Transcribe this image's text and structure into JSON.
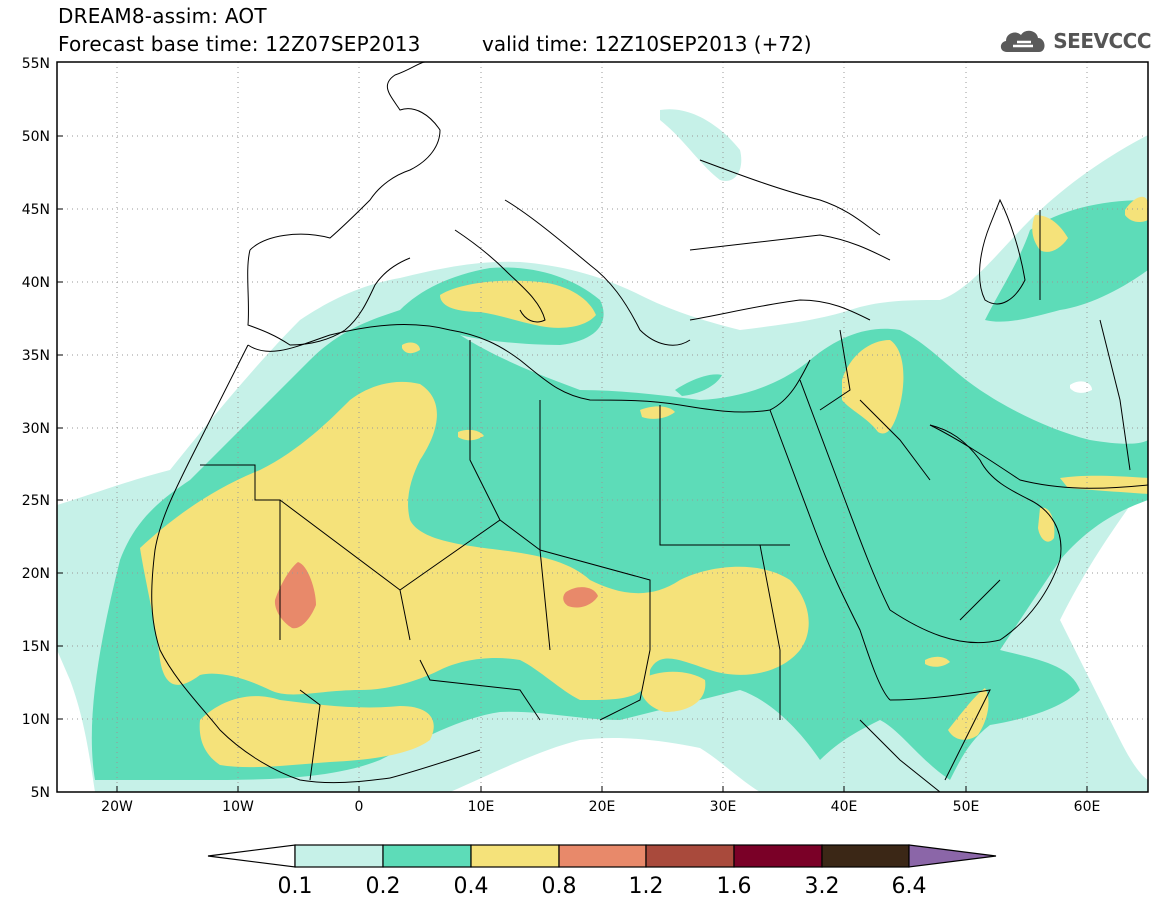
{
  "header": {
    "title_line1": "DREAM8-assim: AOT",
    "title_line2": "Forecast base time: 12Z07SEP2013",
    "title_line2b": "valid time: 12Z10SEP2013 (+72)",
    "logo_text": "SEEVCCC"
  },
  "map": {
    "lon_range": [
      -25,
      65
    ],
    "lat_range": [
      5,
      55
    ],
    "lat_labels": [
      "55N",
      "50N",
      "45N",
      "40N",
      "35N",
      "30N",
      "25N",
      "20N",
      "15N",
      "10N",
      "5N"
    ],
    "lon_labels": [
      "20W",
      "10W",
      "0",
      "10E",
      "20E",
      "30E",
      "40E",
      "50E",
      "60E"
    ],
    "grid": "dotted"
  },
  "colorbar": {
    "labels": [
      "0.1",
      "0.2",
      "0.4",
      "0.8",
      "1.2",
      "1.6",
      "3.2",
      "6.4"
    ],
    "colors": [
      "#ffffff",
      "#c6f1e8",
      "#5ddcb8",
      "#f5e27a",
      "#e8896a",
      "#a94a3c",
      "#7a0027",
      "#3b2716",
      "#8b66a8"
    ]
  },
  "colors": {
    "lvl1": "#c6f1e8",
    "lvl2": "#5ddcb8",
    "lvl3": "#f5e27a",
    "lvl4": "#e8896a",
    "border": "#000000"
  }
}
